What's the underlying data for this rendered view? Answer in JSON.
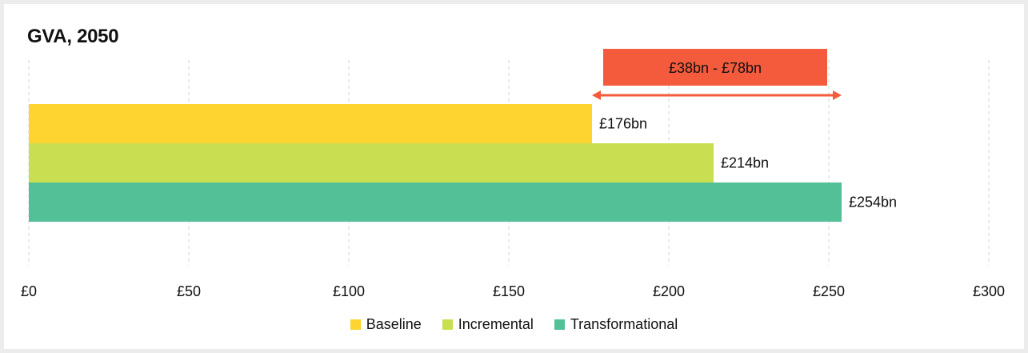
{
  "chart_data": {
    "type": "bar",
    "orientation": "horizontal",
    "title": "GVA, 2050",
    "series": [
      {
        "name": "Baseline",
        "value": 176,
        "label": "£176bn",
        "color": "#fdd430"
      },
      {
        "name": "Incremental",
        "value": 214,
        "label": "£214bn",
        "color": "#cade52"
      },
      {
        "name": "Transformational",
        "value": 254,
        "label": "£254bn",
        "color": "#54c097"
      }
    ],
    "xlim": [
      0,
      300
    ],
    "xticks": [
      0,
      50,
      100,
      150,
      200,
      250,
      300
    ],
    "xtick_labels": [
      "£0",
      "£50",
      "£100",
      "£150",
      "£200",
      "£250",
      "£300"
    ],
    "grid": "vertical-dashed",
    "legend_position": "bottom-center",
    "annotation": {
      "text": "£38bn - £78bn",
      "from": 176,
      "to": 254,
      "color": "#f45a3c"
    }
  }
}
